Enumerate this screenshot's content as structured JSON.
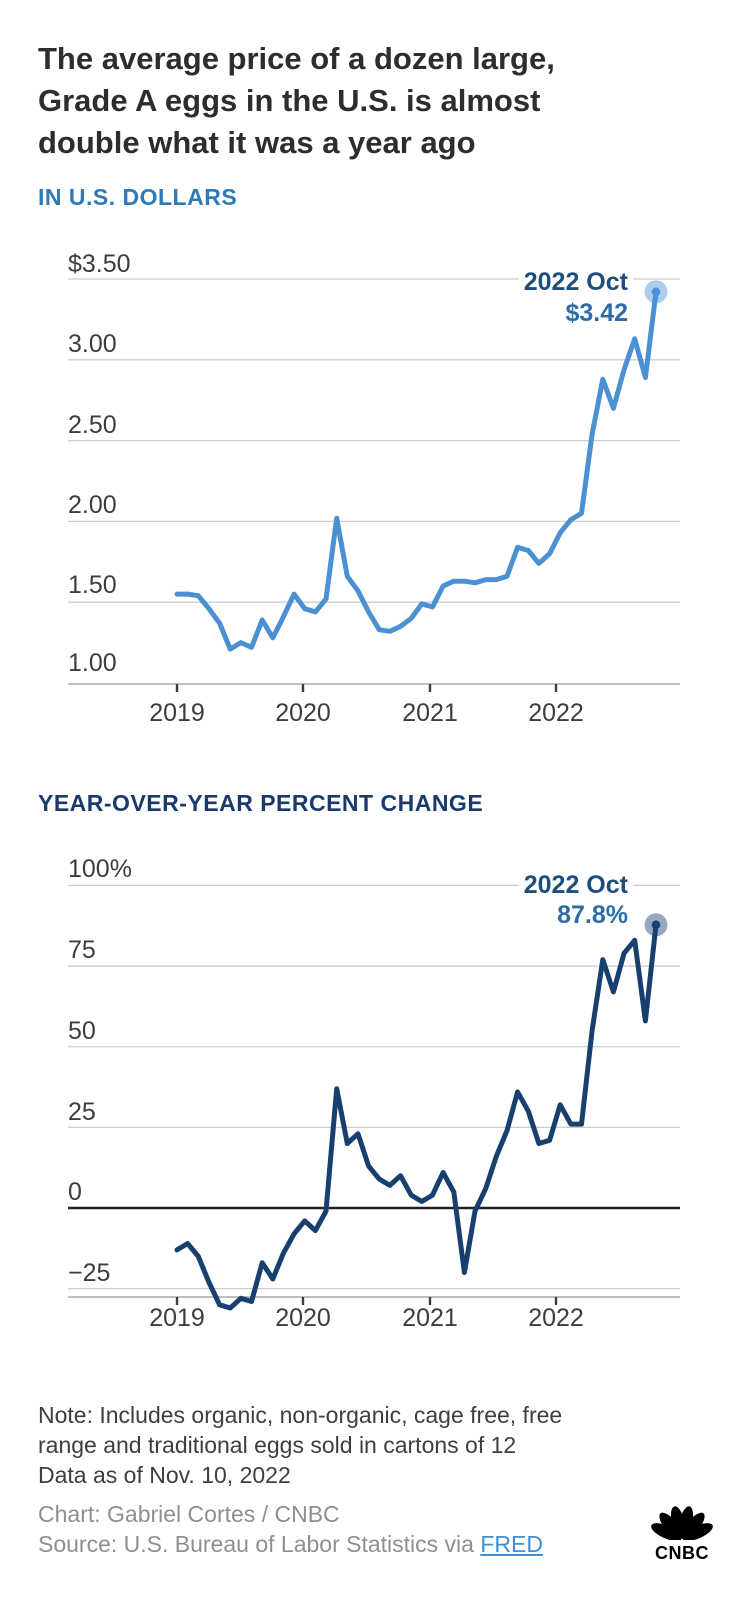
{
  "header": {
    "title_lines": [
      "The average price of a dozen large,",
      "Grade A eggs in the U.S. is almost",
      "double what it was a year ago"
    ]
  },
  "chart_data": [
    {
      "type": "line",
      "title": "IN U.S. DOLLARS",
      "series_name": "Average price, dozen large Grade A eggs, U.S.",
      "unit": "U.S. dollars",
      "x": {
        "start": "2019-01",
        "end": "2022-10",
        "interval": "monthly"
      },
      "x_tick_labels": [
        "2019",
        "2020",
        "2021",
        "2022"
      ],
      "y_tick_labels": [
        "$3.50",
        "3.00",
        "2.50",
        "2.00",
        "1.50",
        "1.00"
      ],
      "y_tick_values": [
        3.5,
        3.0,
        2.5,
        2.0,
        1.5,
        1.0
      ],
      "ylim": [
        1.0,
        3.5
      ],
      "grid": true,
      "legend": "none",
      "line_color": "#4a90d2",
      "annotation": {
        "label": "2022 Oct",
        "value_label": "$3.42",
        "value": 3.42
      },
      "values": [
        1.55,
        1.55,
        1.54,
        1.46,
        1.37,
        1.21,
        1.25,
        1.22,
        1.39,
        1.28,
        1.41,
        1.55,
        1.46,
        1.44,
        1.52,
        2.02,
        1.66,
        1.57,
        1.44,
        1.33,
        1.32,
        1.35,
        1.4,
        1.49,
        1.47,
        1.6,
        1.63,
        1.63,
        1.62,
        1.64,
        1.64,
        1.66,
        1.84,
        1.82,
        1.74,
        1.8,
        1.93,
        2.01,
        2.05,
        2.54,
        2.88,
        2.7,
        2.94,
        3.13,
        2.89,
        3.42
      ]
    },
    {
      "type": "line",
      "title": "YEAR-OVER-YEAR PERCENT CHANGE",
      "series_name": "Year-over-year percent change in egg price",
      "unit": "percent",
      "x": {
        "start": "2019-01",
        "end": "2022-10",
        "interval": "monthly"
      },
      "x_tick_labels": [
        "2019",
        "2020",
        "2021",
        "2022"
      ],
      "y_tick_labels": [
        "100%",
        "75",
        "50",
        "25",
        "0",
        "−25"
      ],
      "y_tick_values": [
        100,
        75,
        50,
        25,
        0,
        -25
      ],
      "ylim": [
        -32,
        100
      ],
      "grid": true,
      "zero_line": true,
      "legend": "none",
      "line_color": "#17406f",
      "annotation": {
        "label": "2022 Oct",
        "value_label": "87.8%",
        "value": 87.8
      },
      "values": [
        -13,
        -11,
        -15,
        -23,
        -30,
        -31,
        -28,
        -29,
        -17,
        -22,
        -14,
        -8,
        -4,
        -7,
        -1,
        37,
        20,
        23,
        13,
        9,
        7,
        10,
        4,
        2,
        4,
        11,
        5,
        -20,
        -1,
        6,
        16,
        24,
        36,
        30,
        20,
        21,
        32,
        26,
        26,
        55,
        77,
        67,
        79,
        83,
        58,
        87.8
      ]
    }
  ],
  "footer": {
    "note_lines": [
      "Note: Includes organic, non-organic, cage free, free",
      "range and traditional eggs sold in cartons of 12"
    ],
    "data_as_of": "Data as of Nov. 10, 2022",
    "credit": "Chart: Gabriel Cortes / CNBC",
    "source_prefix": "Source: U.S. Bureau of Labor Statistics via ",
    "source_link": "FRED",
    "logo_text": "CNBC"
  },
  "colors": {
    "title_text": "#2d2d2d",
    "kicker1": "#2e79b8",
    "kicker2": "#1a3a6b",
    "axis_labels": "#3d3d3d",
    "gridline": "#cdcdcd",
    "axis_line": "#a8a8a8",
    "zero_line": "#222222",
    "chart1_line": "#4a90d2",
    "chart2_line": "#17406f",
    "annotation_label": "#1d4e7e",
    "annotation_value": "#2e6ca8",
    "note_text": "#3e3e3e",
    "credit_text": "#8f8f8f",
    "link": "#3f8fd2"
  }
}
